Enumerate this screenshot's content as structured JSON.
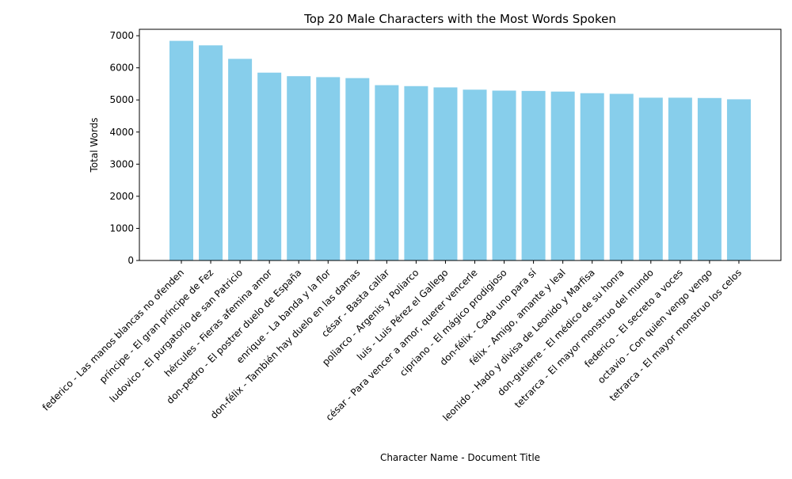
{
  "chart_data": {
    "type": "bar",
    "title": "Top 20 Male Characters with the Most Words Spoken",
    "xlabel": "Character Name - Document Title",
    "ylabel": "Total Words",
    "ylim": [
      0,
      7200
    ],
    "yticks": [
      0,
      1000,
      2000,
      3000,
      4000,
      5000,
      6000,
      7000
    ],
    "bar_color": "#87ceeb",
    "grid": false,
    "legend": false,
    "categories": [
      "federico - Las manos blancas no ofenden",
      "príncipe - El gran príncipe de Fez",
      "ludovico - El purgatorio de san Patricio",
      "hércules - Fieras afemina amor",
      "don-pedro - El postrer duelo de España",
      "enrique - La banda y la flor",
      "don-félix - También hay duelo en las damas",
      "césar - Basta callar",
      "poliarco - Argenis y Poliarco",
      "luis - Luis Pérez el Gallego",
      "césar - Para vencer a amor, querer vencerle",
      "cipriano - El mágico prodigioso",
      "don-félix - Cada uno para sí",
      "félix - Amigo, amante y leal",
      "leonido - Hado y divisa de Leonido y Marfisa",
      "don-gutierre - El médico de su honra",
      "tetrarca - El mayor monstruo del mundo",
      "federico - El secreto a voces",
      "octavio - Con quien vengo vengo",
      "tetrarca - El mayor monstruo los celos"
    ],
    "values": [
      6840,
      6700,
      6280,
      5850,
      5740,
      5710,
      5680,
      5460,
      5430,
      5390,
      5320,
      5290,
      5280,
      5260,
      5210,
      5190,
      5070,
      5070,
      5060,
      5020
    ]
  }
}
